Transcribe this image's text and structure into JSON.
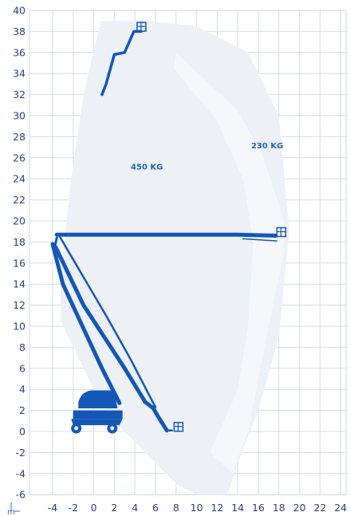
{
  "chart_data": {
    "type": "diagram",
    "y_ticks": [
      "-6",
      "-4",
      "-2",
      "0",
      "2",
      "4",
      "6",
      "8",
      "10",
      "12",
      "14",
      "16",
      "18",
      "20",
      "22",
      "24",
      "26",
      "28",
      "30",
      "32",
      "34",
      "36",
      "38",
      "40"
    ],
    "x_ticks": [
      "-4",
      "-2",
      "0",
      "2",
      "4",
      "6",
      "8",
      "10",
      "12",
      "14",
      "16",
      "18",
      "20",
      "22",
      "24"
    ],
    "y_range": [
      -6,
      40
    ],
    "x_range": [
      -4,
      24
    ],
    "grid": true,
    "unit_label": "m",
    "zones": [
      {
        "label": "450 KG",
        "outline": [
          [
            0.7,
            39
          ],
          [
            5,
            39
          ],
          [
            10,
            38.5
          ],
          [
            15,
            36
          ],
          [
            18,
            30
          ],
          [
            19,
            19
          ],
          [
            18,
            9
          ],
          [
            16,
            2
          ],
          [
            14,
            -3
          ],
          [
            13,
            -6
          ],
          [
            12,
            -6
          ],
          [
            10,
            -6
          ],
          [
            8,
            -5
          ],
          [
            6,
            -3
          ],
          [
            4,
            -1
          ],
          [
            2,
            1
          ],
          [
            0,
            4
          ],
          [
            -2,
            8
          ],
          [
            -3.2,
            10.5
          ],
          [
            -3.2,
            15
          ],
          [
            -2.2,
            24
          ],
          [
            -1,
            32
          ]
        ]
      },
      {
        "label": "230 KG",
        "outline": [
          [
            8,
            36
          ],
          [
            14,
            30.5
          ],
          [
            16.5,
            26
          ],
          [
            18.5,
            20
          ],
          [
            18.5,
            17
          ],
          [
            17,
            10
          ],
          [
            15,
            0
          ],
          [
            13.5,
            -4
          ],
          [
            11.3,
            -2
          ],
          [
            14,
            4
          ],
          [
            15,
            10
          ],
          [
            15.5,
            18
          ],
          [
            14.5,
            24
          ],
          [
            12,
            29.5
          ],
          [
            9,
            33
          ],
          [
            7.8,
            34.5
          ]
        ]
      }
    ],
    "boom_positions": [
      "max-height",
      "max-outreach",
      "low"
    ]
  }
}
